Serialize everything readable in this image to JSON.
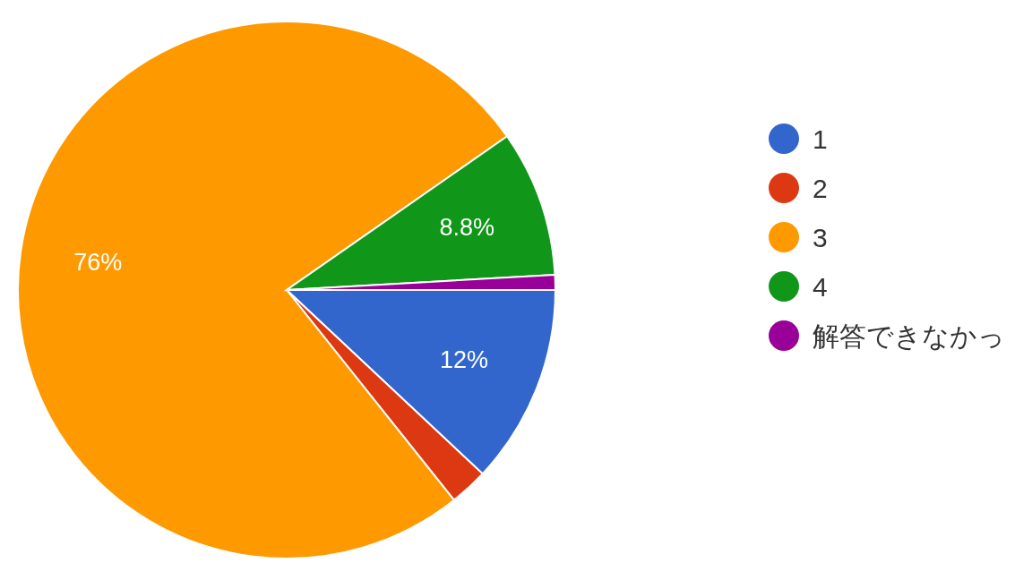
{
  "chart_data": {
    "type": "pie",
    "categories": [
      "1",
      "2",
      "3",
      "4",
      "解答できなかっ"
    ],
    "values": [
      12,
      2.3,
      76,
      8.8,
      0.9
    ],
    "colors": [
      "#3366cc",
      "#dc3912",
      "#ff9900",
      "#109618",
      "#990099"
    ],
    "value_labels": [
      "12%",
      null,
      "76%",
      "8.8%",
      null
    ],
    "legend": "right"
  }
}
